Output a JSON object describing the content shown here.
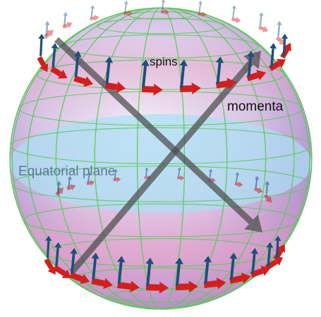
{
  "labels": {
    "spins": "spins",
    "momenta": "momenta",
    "equatorial_plane": "Equatorial plane"
  },
  "colors": {
    "spin_arrow": "#1f4e79",
    "momentum_arrow": "#d11f1f",
    "grid_line": "#5cc95c",
    "sphere_tint": "#b79ad6",
    "equatorial_band": "#a9dff3",
    "diagonal_arrow": "#4a4a4a",
    "text_dark": "#111111",
    "text_equatorial": "#5a7a92"
  }
}
